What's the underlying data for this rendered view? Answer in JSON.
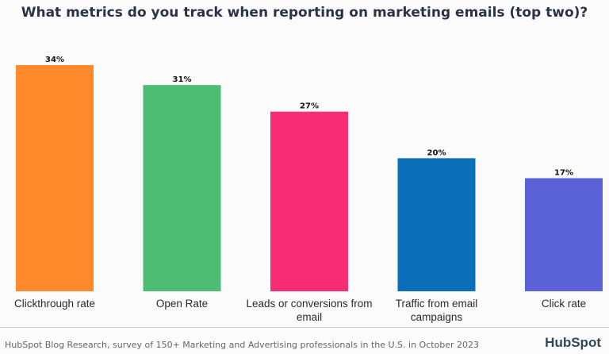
{
  "chart_data": {
    "type": "bar",
    "title": "What metrics do you track when reporting on marketing emails (top two)?",
    "categories": [
      "Clickthrough rate",
      "Open Rate",
      "Leads or conversions from email",
      "Traffic from email campaigns",
      "Click rate"
    ],
    "values": [
      34,
      31,
      27,
      20,
      17
    ],
    "value_labels": [
      "34%",
      "31%",
      "27%",
      "20%",
      "17%"
    ],
    "colors": [
      "#ff8a2b",
      "#4dbd74",
      "#f72d73",
      "#0a6fb8",
      "#5b62d6"
    ],
    "ylim": [
      0,
      34
    ],
    "grid": false,
    "legend": "none"
  },
  "footer": {
    "source": "HubSpot Blog Research, survey of 150+ Marketing and Advertising professionals in the U.S. in October 2023",
    "brand": "HubSpot"
  }
}
